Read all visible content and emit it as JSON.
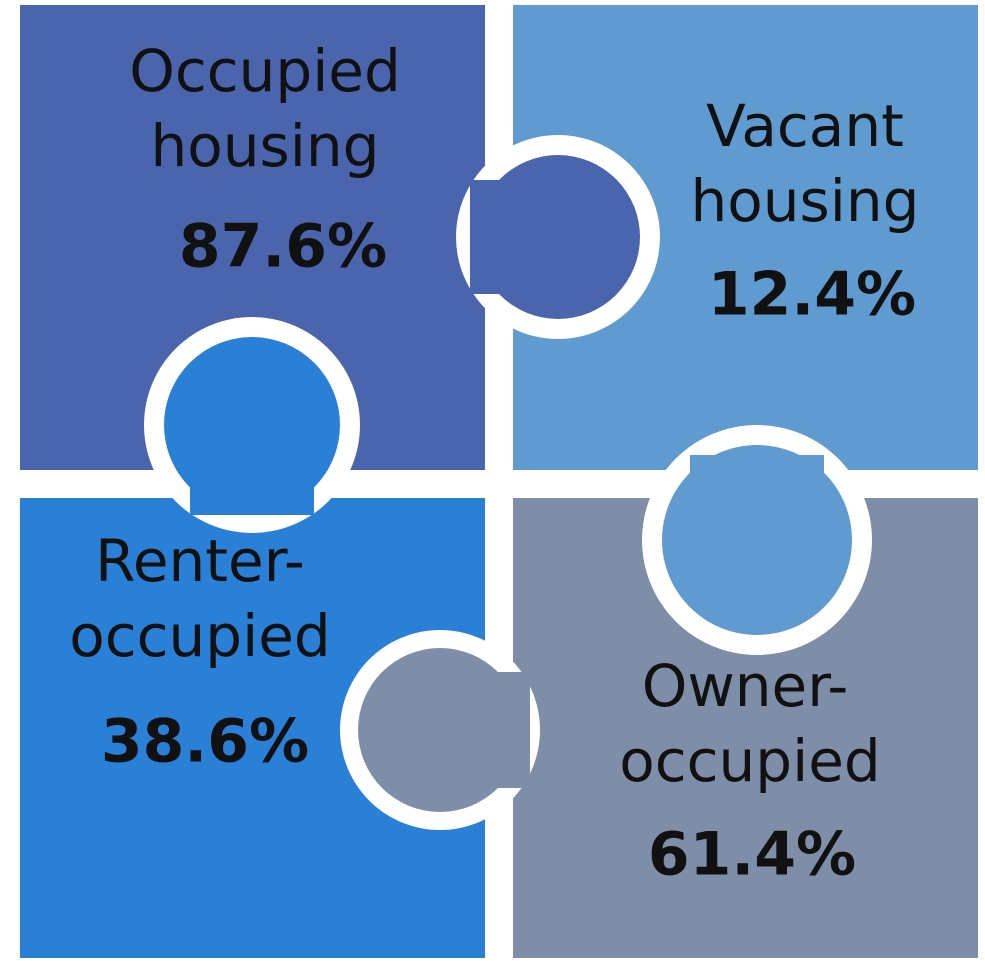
{
  "pieces": [
    {
      "label": [
        "Occupied",
        "housing"
      ],
      "value": "87.6%"
    },
    {
      "label": [
        "Vacant",
        "housing"
      ],
      "value": "12.4%"
    },
    {
      "label": [
        "Renter-",
        "occupied"
      ],
      "value": "38.6%"
    },
    {
      "label": [
        "Owner-",
        "occupied"
      ],
      "value": "61.4%"
    }
  ]
}
